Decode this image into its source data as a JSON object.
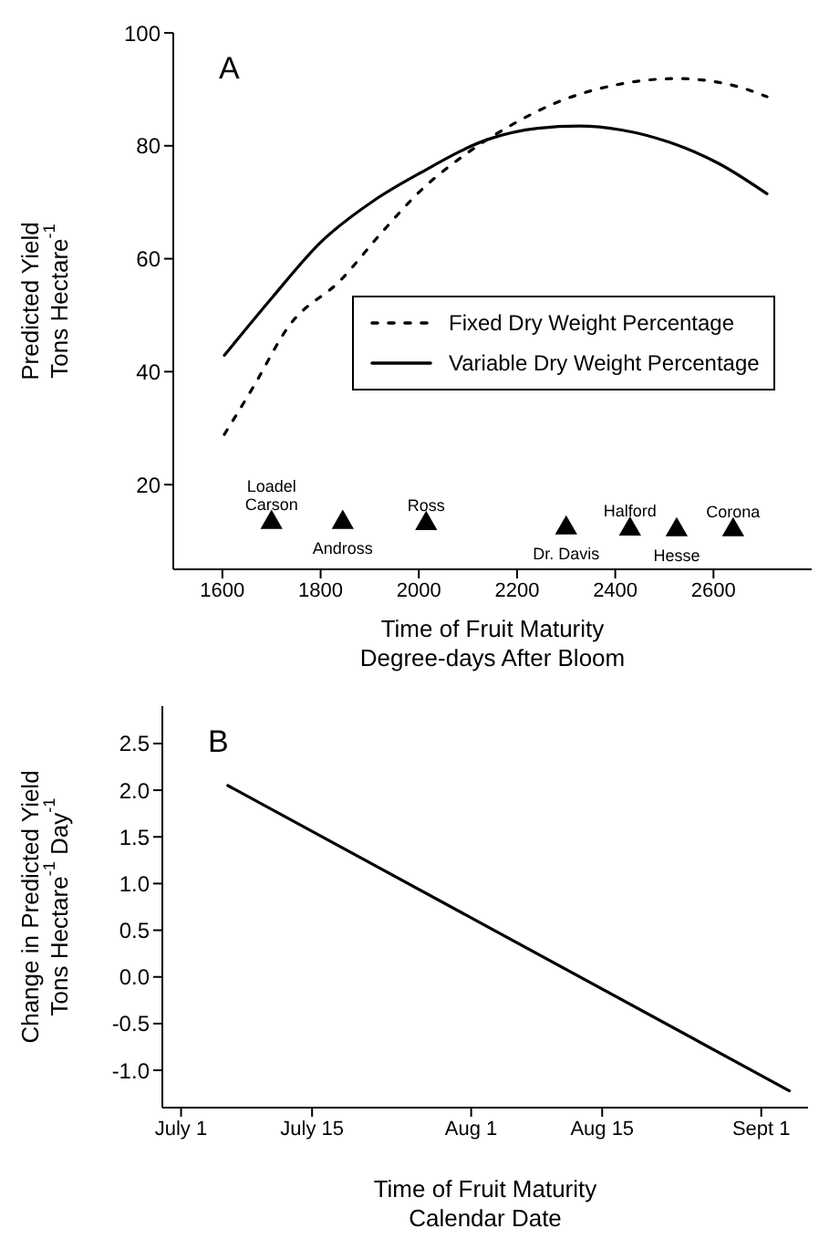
{
  "chart_data": [
    {
      "type": "line",
      "xlabel": "Time of Fruit Maturity\nDegree-days After Bloom",
      "ylabel": "Predicted Yield\nTons Hectare$^{-1}$",
      "xlim": [
        1500,
        2800
      ],
      "xticks": [
        1600,
        1800,
        2000,
        2200,
        2400,
        2600
      ],
      "ylim": [
        5,
        100
      ],
      "yticks": [
        20,
        40,
        60,
        80,
        100
      ],
      "legend": "right",
      "series": [
        {
          "name": "Fixed Dry Weight Percentage",
          "color": "#000000",
          "line_style": "dotted",
          "x": [
            1604,
            1665,
            1733,
            1843,
            1923,
            2003,
            2095,
            2193,
            2279,
            2402,
            2525,
            2635,
            2709
          ],
          "values": [
            28.9,
            37.6,
            47.8,
            56.4,
            64.5,
            72,
            78.5,
            83.9,
            87.6,
            90.8,
            91.9,
            90.8,
            88.7
          ]
        },
        {
          "name": "Variable Dry Weight Percentage",
          "color": "#000000",
          "line_style": "solid",
          "x": [
            1604,
            1702,
            1800,
            1910,
            2003,
            2143,
            2242,
            2327,
            2413,
            2511,
            2610,
            2709
          ],
          "values": [
            42.9,
            53.2,
            62.9,
            70.4,
            75.2,
            81.2,
            83.1,
            83.5,
            82.8,
            80.6,
            76.9,
            71.5
          ]
        },
        {
          "type": "scatter",
          "marker": "triangle",
          "color": "#000000",
          "x": [
            1700,
            1845,
            2015,
            2300,
            2430,
            2525,
            2640
          ],
          "values": [
            13.3,
            13.3,
            13.1,
            12.3,
            12.1,
            12,
            12
          ]
        }
      ],
      "annotations": [
        "A",
        {
          "text": "Loadel\nCarson",
          "x": 1700,
          "y": 13.3
        },
        {
          "text": "Andross",
          "x": 1845,
          "y": 13.3
        },
        {
          "text": "Ross",
          "x": 2015,
          "y": 13.1
        },
        {
          "text": "Dr. Davis",
          "x": 2300,
          "y": 12.3
        },
        {
          "text": "Halford",
          "x": 2430,
          "y": 12.1
        },
        {
          "text": "Hesse",
          "x": 2525,
          "y": 12
        },
        {
          "text": "Corona",
          "x": 2640,
          "y": 12
        }
      ]
    },
    {
      "type": "line",
      "xlabel": "Time of Fruit Maturity\nCalendar Date",
      "ylabel": "Change in Predicted Yield\nTons Hectare$^{-1}$ Day$^{-1}$",
      "xlim": [
        "--06-29",
        "--09-06"
      ],
      "xticks": [
        {
          "value": "--07-01",
          "label": "July 1"
        },
        {
          "value": "--07-15",
          "label": "July 15"
        },
        {
          "value": "--08-01",
          "label": "Aug 1"
        },
        {
          "value": "--08-15",
          "label": "Aug 15"
        },
        {
          "value": "--09-01",
          "label": "Sept 1"
        }
      ],
      "ylim": [
        -1.4,
        2.9
      ],
      "yticks": [
        {
          "value": -1,
          "label": "-1.0"
        },
        {
          "value": -0.5,
          "label": "-0.5"
        },
        {
          "value": 0,
          "label": "0.0"
        },
        {
          "value": 0.5,
          "label": "0.5"
        },
        {
          "value": 1,
          "label": "1.0"
        },
        {
          "value": 1.5,
          "label": "1.5"
        },
        {
          "value": 2,
          "label": "2.0"
        },
        {
          "value": 2.5,
          "label": "2.5"
        }
      ],
      "series": [
        {
          "color": "#000000",
          "line_style": "solid",
          "x": [
            "--07-06",
            "--09-04"
          ],
          "values": [
            2.05,
            -1.22
          ]
        }
      ],
      "annotations": [
        "B"
      ]
    }
  ]
}
